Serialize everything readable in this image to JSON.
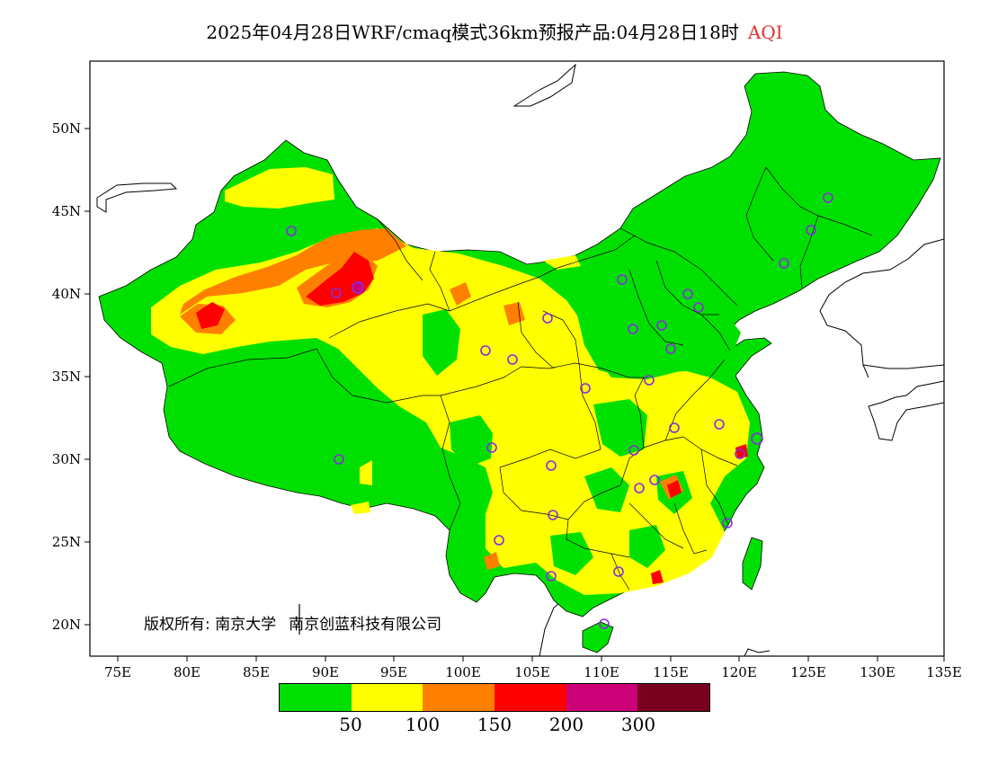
{
  "title": {
    "main": "2025年04月28日WRF/cmaq模式36km预报产品:04月28日18时",
    "variable": "AQI",
    "variable_color": "#e03030"
  },
  "copyright": {
    "prefix": "版权所有:",
    "owner1": "南京大学",
    "owner2": "南京创蓝科技有限公司"
  },
  "axes": {
    "lat_labels": [
      "50N",
      "45N",
      "40N",
      "35N",
      "30N",
      "25N",
      "20N"
    ],
    "lon_labels": [
      "75E",
      "80E",
      "85E",
      "90E",
      "95E",
      "100E",
      "105E",
      "110E",
      "115E",
      "120E",
      "125E",
      "130E",
      "135E"
    ]
  },
  "legend": {
    "colors": [
      "#00e000",
      "#ffff00",
      "#ff8000",
      "#ff0000",
      "#cc0077",
      "#7a0020"
    ],
    "labels": [
      "50",
      "100",
      "150",
      "200",
      "300"
    ]
  }
}
